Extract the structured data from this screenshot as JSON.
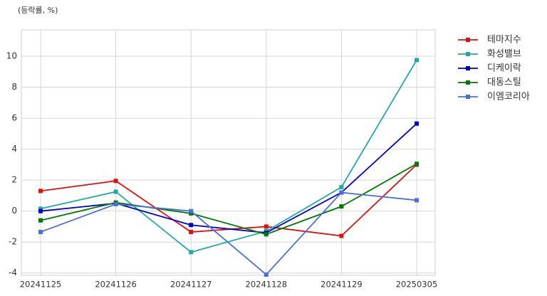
{
  "chart_data": {
    "type": "line",
    "y_label": "(등락률, %)",
    "categories": [
      "20241125",
      "20241126",
      "20241127",
      "20241128",
      "20241129",
      "20250305"
    ],
    "series": [
      {
        "name": "테마지수",
        "color": "#e01010",
        "values": [
          1.3,
          1.95,
          -1.35,
          -1.0,
          -1.6,
          3.0
        ]
      },
      {
        "name": "화성밸브",
        "color": "#20aaa5",
        "values": [
          0.15,
          1.25,
          -2.65,
          -1.3,
          1.55,
          9.75
        ]
      },
      {
        "name": "디케이락",
        "color": "#0000cc",
        "values": [
          0.0,
          0.5,
          -0.9,
          -1.4,
          1.2,
          5.65
        ]
      },
      {
        "name": "대동스틸",
        "color": "#007a00",
        "values": [
          -0.6,
          0.55,
          -0.15,
          -1.5,
          0.3,
          3.05
        ]
      },
      {
        "name": "이엠코리아",
        "color": "#4a6fd8",
        "values": [
          -1.35,
          0.45,
          0.0,
          -4.1,
          1.2,
          0.7
        ]
      }
    ],
    "ylim": [
      -4.15,
      11.7
    ],
    "yticks": [
      -4,
      -2,
      0,
      2,
      4,
      6,
      8,
      10
    ],
    "grid": true
  }
}
